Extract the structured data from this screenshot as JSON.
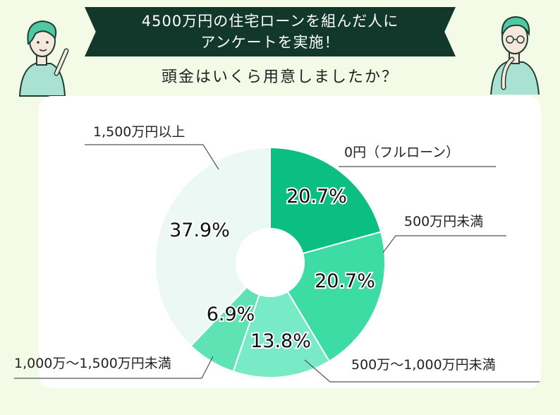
{
  "header": {
    "title_line1": "4500万円の住宅ローンを組んだ人に",
    "title_line2": "アンケートを実施！",
    "subtitle": "頭金はいくら用意しましたか？"
  },
  "chart_data": {
    "type": "pie",
    "donut": true,
    "categories": [
      "0円（フルローン）",
      "500万円未満",
      "500万〜1,000万円未満",
      "1,000万〜1,500万円未満",
      "1,500万円以上"
    ],
    "values": [
      20.7,
      20.7,
      13.8,
      6.9,
      37.9
    ],
    "value_labels": [
      "20.7%",
      "20.7%",
      "13.8%",
      "6.9%",
      "37.9%"
    ],
    "colors": [
      "#0bbf82",
      "#3ddca5",
      "#78eac6",
      "#5fe3b5",
      "#ecf8f3"
    ]
  }
}
